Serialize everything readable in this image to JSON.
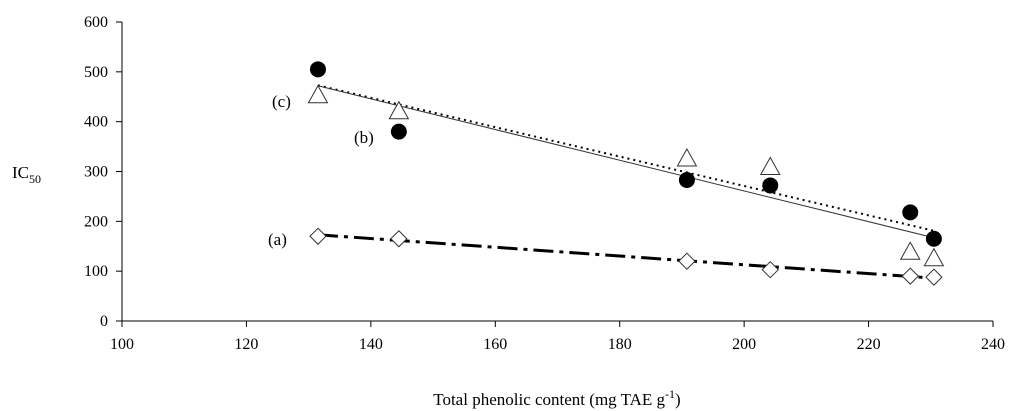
{
  "chart_data": {
    "type": "scatter",
    "title": "",
    "xlabel": {
      "main": "Total phenolic content (mg TAE g",
      "sup": "-1",
      "close": ")"
    },
    "ylabel": {
      "main": "IC",
      "sub": "50"
    },
    "xlim": [
      100,
      240
    ],
    "ylim": [
      0,
      600
    ],
    "xticks": [
      100,
      120,
      140,
      160,
      180,
      200,
      220,
      240
    ],
    "yticks": [
      0,
      100,
      200,
      300,
      400,
      500,
      600
    ],
    "grid": false,
    "series": [
      {
        "label": "(a)",
        "marker": "diamond-open",
        "line_style": "dash-dot-thick",
        "x": [
          131.5,
          144.5,
          190.8,
          204.2,
          226.7,
          230.5
        ],
        "y": [
          170,
          165,
          120,
          103,
          90,
          88
        ],
        "trend": {
          "x": [
            131.5,
            230.5
          ],
          "y": [
            173,
            86
          ]
        }
      },
      {
        "label": "(b)",
        "marker": "circle-filled",
        "line_style": "dotted",
        "x": [
          131.5,
          144.5,
          190.8,
          204.2,
          226.7,
          230.5
        ],
        "y": [
          505,
          380,
          283,
          272,
          218,
          165
        ],
        "trend": {
          "x": [
            131.5,
            230.5
          ],
          "y": [
            473,
            181
          ]
        }
      },
      {
        "label": "(c)",
        "marker": "triangle-open",
        "line_style": "solid-thin",
        "x": [
          131.5,
          144.5,
          190.8,
          204.2,
          226.7,
          230.5
        ],
        "y": [
          452,
          420,
          325,
          308,
          138,
          125
        ],
        "trend": {
          "x": [
            131.5,
            230.5
          ],
          "y": [
            472,
            167
          ]
        }
      }
    ]
  }
}
